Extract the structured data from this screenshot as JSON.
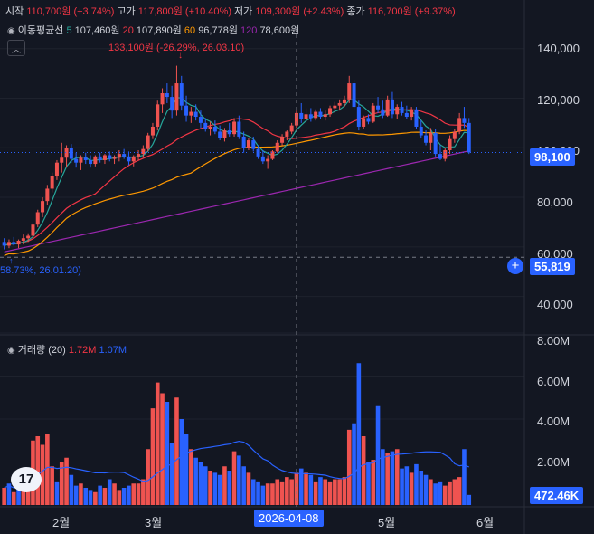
{
  "header": {
    "open_label": "시작",
    "open_value": "110,700원",
    "open_pct": "(+3.74%)",
    "high_label": "고가",
    "high_value": "117,800원",
    "high_pct": "(+10.40%)",
    "low_label": "저가",
    "low_value": "109,300원",
    "low_pct": "(+2.43%)",
    "close_label": "종가",
    "close_value": "116,700원",
    "close_pct": "(+9.37%)"
  },
  "ma_legend": {
    "title": "이동평균선",
    "items": [
      {
        "period": "5",
        "value": "107,460원",
        "color": "#26a69a"
      },
      {
        "period": "20",
        "value": "107,890원",
        "color": "#f23645"
      },
      {
        "period": "60",
        "value": "96,778원",
        "color": "#ff9800"
      },
      {
        "period": "120",
        "value": "78,600원",
        "color": "#9c27b0"
      }
    ]
  },
  "volume_legend": {
    "title": "거래량 (20)",
    "value1": "1.72M",
    "value2": "1.07M"
  },
  "annotations": {
    "high_marker": "133,100원 (-26.29%, 26.03.10)",
    "low_marker": "58.73%, 26.01.20)"
  },
  "price_axis": {
    "ticks": [
      "140,000",
      "120,000",
      "100,000",
      "80,000",
      "60,000",
      "40,000"
    ]
  },
  "volume_axis": {
    "ticks": [
      "8.00M",
      "6.00M",
      "4.00M",
      "2.00M"
    ]
  },
  "time_axis": {
    "ticks": [
      "2월",
      "3월",
      "5월",
      "6월"
    ],
    "crosshair_label": "2026-04-08"
  },
  "badges": {
    "last_price": "98,100",
    "crosshair_price": "55,819",
    "last_volume": "472.46K"
  },
  "colors": {
    "background": "#131722",
    "up": "#ef5350",
    "down": "#2962ff",
    "ma5": "#26a69a",
    "ma20": "#f23645",
    "ma60": "#ff9800",
    "ma120": "#9c27b0",
    "volume_ma": "#2962ff"
  },
  "chart_data": {
    "type": "candlestick",
    "ylim": [
      30000,
      145000
    ],
    "volume_ylim": [
      0,
      8000000
    ],
    "candles": [
      {
        "o": 62000,
        "h": 63500,
        "l": 59000,
        "c": 60500
      },
      {
        "o": 60500,
        "h": 63000,
        "l": 59500,
        "c": 62000
      },
      {
        "o": 62000,
        "h": 64000,
        "l": 60500,
        "c": 61000
      },
      {
        "o": 61000,
        "h": 63000,
        "l": 59500,
        "c": 62500
      },
      {
        "o": 62500,
        "h": 65000,
        "l": 61000,
        "c": 63500
      },
      {
        "o": 63500,
        "h": 65500,
        "l": 62000,
        "c": 64500
      },
      {
        "o": 64500,
        "h": 70000,
        "l": 63500,
        "c": 69000
      },
      {
        "o": 69000,
        "h": 75000,
        "l": 68000,
        "c": 74000
      },
      {
        "o": 74000,
        "h": 80000,
        "l": 72000,
        "c": 78500
      },
      {
        "o": 78500,
        "h": 85000,
        "l": 77000,
        "c": 83500
      },
      {
        "o": 83500,
        "h": 90000,
        "l": 82000,
        "c": 88500
      },
      {
        "o": 88500,
        "h": 95000,
        "l": 87000,
        "c": 94000
      },
      {
        "o": 94000,
        "h": 102000,
        "l": 90000,
        "c": 96000
      },
      {
        "o": 96000,
        "h": 101000,
        "l": 92000,
        "c": 100000
      },
      {
        "o": 100000,
        "h": 101500,
        "l": 94000,
        "c": 95500
      },
      {
        "o": 95500,
        "h": 98000,
        "l": 92000,
        "c": 94000
      },
      {
        "o": 94000,
        "h": 97000,
        "l": 91000,
        "c": 96000
      },
      {
        "o": 96000,
        "h": 98000,
        "l": 93500,
        "c": 95000
      },
      {
        "o": 95000,
        "h": 97000,
        "l": 92000,
        "c": 93500
      },
      {
        "o": 93500,
        "h": 97000,
        "l": 92500,
        "c": 96500
      },
      {
        "o": 96500,
        "h": 98000,
        "l": 94000,
        "c": 95000
      },
      {
        "o": 95000,
        "h": 97500,
        "l": 93500,
        "c": 97000
      },
      {
        "o": 97000,
        "h": 98500,
        "l": 94500,
        "c": 95500
      },
      {
        "o": 95500,
        "h": 97000,
        "l": 93500,
        "c": 96000
      },
      {
        "o": 96000,
        "h": 99000,
        "l": 94500,
        "c": 97500
      },
      {
        "o": 97500,
        "h": 99500,
        "l": 95500,
        "c": 96500
      },
      {
        "o": 96500,
        "h": 98500,
        "l": 93000,
        "c": 94500
      },
      {
        "o": 94500,
        "h": 97000,
        "l": 92500,
        "c": 96500
      },
      {
        "o": 96500,
        "h": 99000,
        "l": 95000,
        "c": 97500
      },
      {
        "o": 97500,
        "h": 101000,
        "l": 96000,
        "c": 99500
      },
      {
        "o": 99500,
        "h": 106000,
        "l": 98500,
        "c": 105000
      },
      {
        "o": 105000,
        "h": 110000,
        "l": 103500,
        "c": 108500
      },
      {
        "o": 108500,
        "h": 119000,
        "l": 107000,
        "c": 117500
      },
      {
        "o": 117500,
        "h": 124000,
        "l": 114000,
        "c": 122000
      },
      {
        "o": 122000,
        "h": 126000,
        "l": 118000,
        "c": 120500
      },
      {
        "o": 120500,
        "h": 125000,
        "l": 112000,
        "c": 115000
      },
      {
        "o": 115000,
        "h": 133100,
        "l": 113000,
        "c": 126000
      },
      {
        "o": 126000,
        "h": 129000,
        "l": 115000,
        "c": 117000
      },
      {
        "o": 117000,
        "h": 121000,
        "l": 110500,
        "c": 113000
      },
      {
        "o": 113000,
        "h": 116500,
        "l": 110000,
        "c": 114500
      },
      {
        "o": 114500,
        "h": 117500,
        "l": 111000,
        "c": 112500
      },
      {
        "o": 112500,
        "h": 115000,
        "l": 108000,
        "c": 110000
      },
      {
        "o": 110000,
        "h": 112000,
        "l": 106500,
        "c": 107500
      },
      {
        "o": 107500,
        "h": 110500,
        "l": 105000,
        "c": 108500
      },
      {
        "o": 108500,
        "h": 111000,
        "l": 105500,
        "c": 106500
      },
      {
        "o": 106500,
        "h": 109000,
        "l": 103000,
        "c": 104000
      },
      {
        "o": 104000,
        "h": 108000,
        "l": 102500,
        "c": 107000
      },
      {
        "o": 107000,
        "h": 110000,
        "l": 104500,
        "c": 105500
      },
      {
        "o": 105500,
        "h": 112000,
        "l": 104500,
        "c": 110500
      },
      {
        "o": 110500,
        "h": 113000,
        "l": 103500,
        "c": 104500
      },
      {
        "o": 104500,
        "h": 106500,
        "l": 98000,
        "c": 100000
      },
      {
        "o": 100000,
        "h": 104000,
        "l": 99000,
        "c": 103000
      },
      {
        "o": 103000,
        "h": 104500,
        "l": 98500,
        "c": 99500
      },
      {
        "o": 99500,
        "h": 101000,
        "l": 95500,
        "c": 96500
      },
      {
        "o": 96500,
        "h": 99000,
        "l": 93500,
        "c": 94500
      },
      {
        "o": 94500,
        "h": 97000,
        "l": 91500,
        "c": 95500
      },
      {
        "o": 95500,
        "h": 99000,
        "l": 95000,
        "c": 98500
      },
      {
        "o": 98500,
        "h": 103000,
        "l": 98000,
        "c": 102000
      },
      {
        "o": 102000,
        "h": 105500,
        "l": 101000,
        "c": 104500
      },
      {
        "o": 104500,
        "h": 107000,
        "l": 103000,
        "c": 106500
      },
      {
        "o": 106500,
        "h": 110000,
        "l": 105500,
        "c": 109000
      },
      {
        "o": 109000,
        "h": 115000,
        "l": 108000,
        "c": 114000
      },
      {
        "o": 114000,
        "h": 118000,
        "l": 110000,
        "c": 111500
      },
      {
        "o": 111500,
        "h": 116000,
        "l": 110500,
        "c": 113500
      },
      {
        "o": 113500,
        "h": 116000,
        "l": 110500,
        "c": 112000
      },
      {
        "o": 112000,
        "h": 115500,
        "l": 111000,
        "c": 114500
      },
      {
        "o": 114500,
        "h": 116000,
        "l": 111500,
        "c": 112500
      },
      {
        "o": 112500,
        "h": 115000,
        "l": 111000,
        "c": 113500
      },
      {
        "o": 113500,
        "h": 117000,
        "l": 112500,
        "c": 116000
      },
      {
        "o": 116000,
        "h": 118500,
        "l": 114000,
        "c": 117000
      },
      {
        "o": 117000,
        "h": 119500,
        "l": 115000,
        "c": 118000
      },
      {
        "o": 118000,
        "h": 121000,
        "l": 116500,
        "c": 119500
      },
      {
        "o": 119500,
        "h": 129000,
        "l": 118000,
        "c": 126000
      },
      {
        "o": 126000,
        "h": 127500,
        "l": 115000,
        "c": 116500
      },
      {
        "o": 116500,
        "h": 119000,
        "l": 107000,
        "c": 108500
      },
      {
        "o": 108500,
        "h": 113000,
        "l": 107500,
        "c": 112000
      },
      {
        "o": 112000,
        "h": 113500,
        "l": 109500,
        "c": 110500
      },
      {
        "o": 110500,
        "h": 118000,
        "l": 110000,
        "c": 117000
      },
      {
        "o": 117000,
        "h": 120500,
        "l": 114000,
        "c": 115500
      },
      {
        "o": 115500,
        "h": 119000,
        "l": 112000,
        "c": 113000
      },
      {
        "o": 113000,
        "h": 121000,
        "l": 112500,
        "c": 119500
      },
      {
        "o": 119500,
        "h": 122500,
        "l": 112000,
        "c": 113500
      },
      {
        "o": 113500,
        "h": 117500,
        "l": 111500,
        "c": 116500
      },
      {
        "o": 116500,
        "h": 118500,
        "l": 113000,
        "c": 114000
      },
      {
        "o": 114000,
        "h": 117000,
        "l": 111500,
        "c": 112500
      },
      {
        "o": 112500,
        "h": 116500,
        "l": 111000,
        "c": 115500
      },
      {
        "o": 115500,
        "h": 116500,
        "l": 107500,
        "c": 108500
      },
      {
        "o": 108500,
        "h": 111000,
        "l": 104000,
        "c": 105000
      },
      {
        "o": 105000,
        "h": 107000,
        "l": 101000,
        "c": 102000
      },
      {
        "o": 102000,
        "h": 108000,
        "l": 99000,
        "c": 106000
      },
      {
        "o": 106000,
        "h": 107500,
        "l": 96500,
        "c": 97500
      },
      {
        "o": 97500,
        "h": 101000,
        "l": 95000,
        "c": 95500
      },
      {
        "o": 95500,
        "h": 100000,
        "l": 94500,
        "c": 99000
      },
      {
        "o": 99000,
        "h": 105000,
        "l": 97500,
        "c": 103500
      },
      {
        "o": 103500,
        "h": 107500,
        "l": 102000,
        "c": 106500
      },
      {
        "o": 106500,
        "h": 114000,
        "l": 105500,
        "c": 112000
      },
      {
        "o": 112000,
        "h": 116500,
        "l": 108000,
        "c": 110000
      },
      {
        "o": 110000,
        "h": 112000,
        "l": 97500,
        "c": 98100
      }
    ],
    "volume_millions": [
      0.8,
      1.0,
      0.6,
      0.9,
      0.7,
      1.2,
      3.0,
      3.2,
      2.8,
      3.3,
      1.8,
      1.1,
      2.0,
      2.2,
      1.4,
      0.9,
      1.0,
      0.8,
      0.7,
      0.6,
      0.9,
      0.8,
      1.2,
      1.0,
      0.7,
      0.8,
      0.9,
      1.0,
      1.0,
      1.2,
      2.6,
      4.5,
      5.7,
      5.2,
      4.8,
      2.9,
      5.0,
      4.0,
      3.3,
      2.6,
      2.2,
      2.0,
      1.8,
      1.6,
      1.5,
      1.4,
      1.8,
      1.6,
      2.5,
      2.3,
      1.8,
      1.5,
      1.2,
      1.1,
      0.9,
      1.0,
      1.0,
      1.2,
      1.1,
      1.3,
      1.2,
      1.5,
      1.7,
      1.5,
      1.4,
      1.1,
      1.3,
      1.2,
      1.1,
      1.2,
      1.2,
      1.3,
      3.5,
      3.8,
      6.6,
      3.2,
      2.0,
      2.1,
      4.6,
      2.6,
      2.4,
      2.5,
      2.6,
      1.7,
      1.8,
      1.5,
      1.9,
      1.6,
      1.4,
      1.2,
      1.0,
      1.1,
      0.9,
      1.1,
      1.2,
      1.3,
      2.6,
      0.47
    ],
    "volume_up": [
      true,
      false,
      true,
      false,
      true,
      true,
      true,
      true,
      true,
      true,
      true,
      false,
      true,
      true,
      false,
      false,
      true,
      false,
      false,
      true,
      false,
      true,
      false,
      true,
      true,
      false,
      false,
      true,
      true,
      true,
      true,
      true,
      true,
      true,
      false,
      false,
      true,
      false,
      false,
      true,
      false,
      false,
      false,
      true,
      false,
      false,
      true,
      false,
      true,
      false,
      false,
      true,
      false,
      false,
      false,
      true,
      true,
      true,
      true,
      true,
      true,
      true,
      false,
      true,
      false,
      true,
      false,
      true,
      true,
      true,
      true,
      true,
      true,
      false,
      false,
      true,
      false,
      true,
      false,
      false,
      true,
      false,
      true,
      false,
      false,
      true,
      false,
      false,
      false,
      true,
      false,
      false,
      true,
      true,
      true,
      true,
      false,
      false
    ]
  }
}
